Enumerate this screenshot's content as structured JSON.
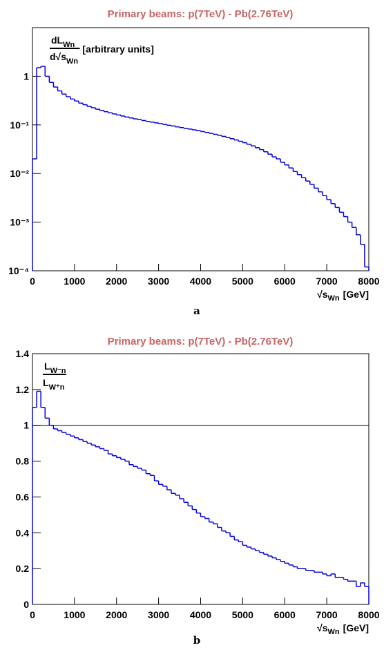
{
  "chart_data": [
    {
      "type": "histogram",
      "title": "Primary beams: p(7TeV) - Pb(2.76TeV)",
      "caption": "a",
      "ylabel": {
        "numerator": "dL",
        "numerator_sub": "Wn",
        "denominator": "d√s",
        "denominator_sub": "Wn",
        "rest": "[arbitrary units]"
      },
      "xlabel": {
        "main": "√s",
        "sub": "Wn",
        "rest": "[GeV]"
      },
      "log_y": true,
      "color": "#0000dd",
      "xlim": [
        0,
        8000
      ],
      "xticks": [
        0,
        1000,
        2000,
        3000,
        4000,
        5000,
        6000,
        7000,
        8000
      ],
      "ylim": [
        0.0001,
        10
      ],
      "yticks": [
        {
          "value": 0.0001,
          "label": "10⁻⁴"
        },
        {
          "value": 0.001,
          "label": "10⁻³"
        },
        {
          "value": 0.01,
          "label": "10⁻²"
        },
        {
          "value": 0.1,
          "label": "10⁻¹"
        },
        1
      ],
      "bins": [
        0,
        100,
        200,
        300,
        400,
        500,
        600,
        700,
        800,
        900,
        1000,
        1100,
        1200,
        1300,
        1400,
        1500,
        1600,
        1700,
        1800,
        1900,
        2000,
        2100,
        2200,
        2300,
        2400,
        2500,
        2600,
        2700,
        2800,
        2900,
        3000,
        3100,
        3200,
        3300,
        3400,
        3500,
        3600,
        3700,
        3800,
        3900,
        4000,
        4100,
        4200,
        4300,
        4400,
        4500,
        4600,
        4700,
        4800,
        4900,
        5000,
        5100,
        5200,
        5300,
        5400,
        5500,
        5600,
        5700,
        5800,
        5900,
        6000,
        6100,
        6200,
        6300,
        6400,
        6500,
        6600,
        6700,
        6800,
        6900,
        7000,
        7100,
        7200,
        7300,
        7400,
        7500,
        7600,
        7700,
        7800,
        7900,
        8000
      ],
      "values": [
        0.02,
        1.5,
        1.6,
        1.0,
        0.75,
        0.6,
        0.5,
        0.43,
        0.38,
        0.34,
        0.31,
        0.28,
        0.26,
        0.24,
        0.225,
        0.21,
        0.198,
        0.187,
        0.177,
        0.168,
        0.16,
        0.152,
        0.145,
        0.139,
        0.133,
        0.128,
        0.123,
        0.118,
        0.114,
        0.11,
        0.106,
        0.102,
        0.098,
        0.095,
        0.091,
        0.088,
        0.085,
        0.082,
        0.079,
        0.076,
        0.073,
        0.07,
        0.067,
        0.064,
        0.061,
        0.058,
        0.055,
        0.052,
        0.049,
        0.046,
        0.043,
        0.04,
        0.037,
        0.034,
        0.031,
        0.028,
        0.025,
        0.022,
        0.02,
        0.017,
        0.015,
        0.013,
        0.011,
        0.0095,
        0.0082,
        0.007,
        0.006,
        0.005,
        0.0042,
        0.0035,
        0.0029,
        0.0024,
        0.002,
        0.0016,
        0.0013,
        0.001,
        0.00078,
        0.00055,
        0.00035,
        0.00012
      ]
    },
    {
      "type": "histogram",
      "title": "Primary beams: p(7TeV) - Pb(2.76TeV)",
      "caption": "b",
      "ylabel": {
        "numerator": "L",
        "numerator_sub": "W⁻n",
        "denominator": "L",
        "denominator_sub": "W⁺n"
      },
      "xlabel": {
        "main": "√s",
        "sub": "Wn",
        "rest": "[GeV]"
      },
      "log_y": false,
      "color": "#0000dd",
      "reference_line": 1,
      "xlim": [
        0,
        8000
      ],
      "xticks": [
        0,
        1000,
        2000,
        3000,
        4000,
        5000,
        6000,
        7000,
        8000
      ],
      "ylim": [
        0,
        1.4
      ],
      "yticks": [
        0,
        0.2,
        0.4,
        0.6,
        0.8,
        1,
        1.2,
        1.4
      ],
      "bins": [
        0,
        100,
        200,
        300,
        400,
        500,
        600,
        700,
        800,
        900,
        1000,
        1100,
        1200,
        1300,
        1400,
        1500,
        1600,
        1700,
        1800,
        1900,
        2000,
        2100,
        2200,
        2300,
        2400,
        2500,
        2600,
        2700,
        2800,
        2900,
        3000,
        3100,
        3200,
        3300,
        3400,
        3500,
        3600,
        3700,
        3800,
        3900,
        4000,
        4100,
        4200,
        4300,
        4400,
        4500,
        4600,
        4700,
        4800,
        4900,
        5000,
        5100,
        5200,
        5300,
        5400,
        5500,
        5600,
        5700,
        5800,
        5900,
        6000,
        6100,
        6200,
        6300,
        6400,
        6500,
        6600,
        6700,
        6800,
        6900,
        7000,
        7100,
        7200,
        7300,
        7400,
        7500,
        7600,
        7700,
        7800,
        7900,
        8000
      ],
      "values": [
        1.1,
        1.19,
        1.1,
        1.04,
        1.0,
        0.98,
        0.97,
        0.96,
        0.95,
        0.94,
        0.93,
        0.92,
        0.91,
        0.9,
        0.89,
        0.88,
        0.87,
        0.86,
        0.84,
        0.83,
        0.82,
        0.81,
        0.8,
        0.78,
        0.77,
        0.76,
        0.75,
        0.73,
        0.72,
        0.69,
        0.67,
        0.66,
        0.64,
        0.62,
        0.61,
        0.59,
        0.57,
        0.55,
        0.53,
        0.51,
        0.49,
        0.48,
        0.46,
        0.45,
        0.43,
        0.41,
        0.4,
        0.38,
        0.36,
        0.35,
        0.33,
        0.32,
        0.31,
        0.3,
        0.29,
        0.28,
        0.27,
        0.26,
        0.25,
        0.24,
        0.23,
        0.22,
        0.21,
        0.2,
        0.2,
        0.19,
        0.19,
        0.18,
        0.18,
        0.17,
        0.16,
        0.17,
        0.15,
        0.15,
        0.14,
        0.13,
        0.13,
        0.1,
        0.12,
        0.1
      ]
    }
  ]
}
